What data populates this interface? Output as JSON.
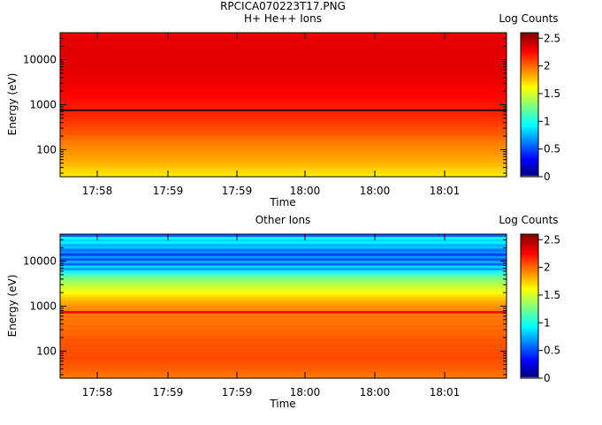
{
  "figure": {
    "title": "RPCICA070223T17.PNG"
  },
  "colorbar": {
    "label": "Log Counts",
    "range": [
      0,
      2.6
    ],
    "ticks": [
      0,
      0.5,
      1,
      1.5,
      2,
      2.5
    ],
    "tick_labels": [
      "0",
      "0.5",
      "1",
      "1.5",
      "2",
      "2.5"
    ]
  },
  "chart_data": [
    {
      "type": "heatmap",
      "title": "H+ He++ Ions",
      "xlabel": "Time",
      "ylabel": "Energy (eV)",
      "y_scale": "log",
      "ylim": [
        25,
        40000
      ],
      "x_tick_labels": [
        "17:58",
        "17:59",
        "17:59",
        "18:00",
        "18:00",
        "18:01"
      ],
      "y_ticks": [
        100,
        1000,
        10000
      ],
      "y_tick_labels": [
        "100",
        "1000",
        "10000"
      ],
      "colorbar_label": "Log Counts",
      "energy_bins_eV": [
        28,
        32,
        36,
        40,
        45,
        51,
        58,
        65,
        74,
        83,
        94,
        106,
        120,
        136,
        153,
        173,
        196,
        221,
        250,
        283,
        320,
        361,
        408,
        462,
        522,
        590,
        667,
        754,
        852,
        963,
        1089,
        1231,
        1391,
        1573,
        1778,
        2010,
        2272,
        2568,
        2903,
        3282,
        3710,
        4194,
        4741,
        5359,
        6058,
        6848,
        7741,
        8751,
        9892,
        11182,
        12641,
        14290,
        16153,
        18260,
        20642,
        23334,
        26378,
        29818,
        33707,
        38103
      ],
      "log_counts": [
        1.66,
        1.7,
        1.72,
        1.75,
        1.78,
        1.8,
        1.83,
        1.85,
        1.86,
        1.88,
        1.89,
        1.9,
        1.92,
        1.94,
        1.95,
        1.98,
        2.0,
        2.03,
        2.05,
        2.06,
        2.08,
        2.1,
        2.12,
        2.13,
        2.15,
        2.17,
        2.18,
        2.19,
        2.2,
        2.21,
        2.22,
        2.23,
        2.24,
        2.25,
        2.26,
        2.27,
        2.28,
        2.29,
        2.3,
        2.31,
        2.31,
        2.32,
        2.32,
        2.33,
        2.33,
        2.34,
        2.34,
        2.34,
        2.34,
        2.33,
        2.34,
        2.34,
        2.33,
        2.34,
        2.33,
        2.32,
        2.33,
        2.32,
        2.31,
        2.3
      ],
      "overlay_line_eV": 750
    },
    {
      "type": "heatmap",
      "title": "Other Ions",
      "xlabel": "Time",
      "ylabel": "Energy (eV)",
      "y_scale": "log",
      "ylim": [
        25,
        40000
      ],
      "x_tick_labels": [
        "17:58",
        "17:59",
        "17:59",
        "18:00",
        "18:00",
        "18:01"
      ],
      "y_ticks": [
        100,
        1000,
        10000
      ],
      "y_tick_labels": [
        "100",
        "1000",
        "10000"
      ],
      "colorbar_label": "Log Counts",
      "energy_bins_eV": [
        28,
        32,
        36,
        40,
        45,
        51,
        58,
        65,
        74,
        83,
        94,
        106,
        120,
        136,
        153,
        173,
        196,
        221,
        250,
        283,
        320,
        361,
        408,
        462,
        522,
        590,
        667,
        754,
        852,
        963,
        1089,
        1231,
        1391,
        1573,
        1778,
        2010,
        2272,
        2568,
        2903,
        3282,
        3710,
        4194,
        4741,
        5359,
        6058,
        6848,
        7741,
        8751,
        9892,
        11182,
        12641,
        14290,
        16153,
        18260,
        20642,
        23334,
        26378,
        29818,
        33707,
        38103
      ],
      "log_counts": [
        1.95,
        1.98,
        2.0,
        2.02,
        2.03,
        2.04,
        2.05,
        2.06,
        2.07,
        2.06,
        2.07,
        2.06,
        2.05,
        2.06,
        2.04,
        2.05,
        2.03,
        2.02,
        2.0,
        2.01,
        1.98,
        2.0,
        1.97,
        1.98,
        1.96,
        1.97,
        1.95,
        2.25,
        1.92,
        1.9,
        1.86,
        1.83,
        1.78,
        1.74,
        1.68,
        1.62,
        1.56,
        1.5,
        1.45,
        1.4,
        1.33,
        1.26,
        1.2,
        1.1,
        0.95,
        0.7,
        0.85,
        0.55,
        0.75,
        0.5,
        0.7,
        0.45,
        0.65,
        0.6,
        0.8,
        0.75,
        0.9,
        0.85,
        0.95,
        0.55
      ]
    }
  ]
}
